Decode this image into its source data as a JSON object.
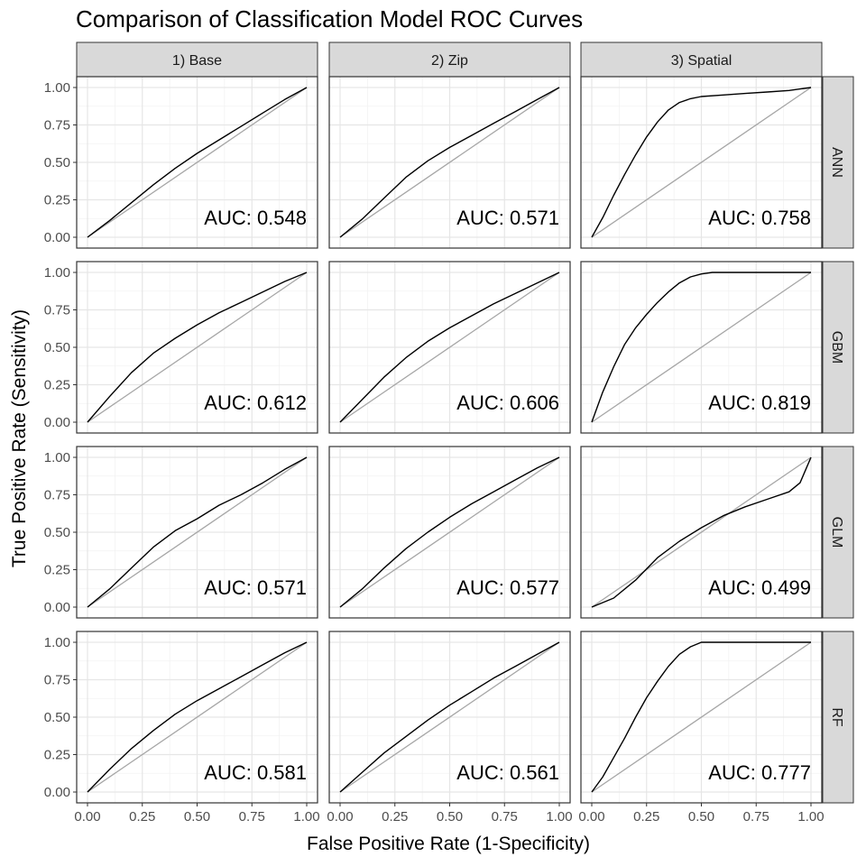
{
  "chart_data": {
    "type": "line",
    "title": "Comparison of Classification Model ROC Curves",
    "xlabel": "False Positive Rate (1-Specificity)",
    "ylabel": "True Positive Rate (Sensitivity)",
    "xlim": [
      0,
      1
    ],
    "ylim": [
      0,
      1
    ],
    "x_ticks": [
      "0.00",
      "0.25",
      "0.50",
      "0.75",
      "1.00"
    ],
    "y_ticks": [
      "0.00",
      "0.25",
      "0.50",
      "0.75",
      "1.00"
    ],
    "grid": true,
    "reference_line": "diagonal",
    "facet_columns": [
      "1) Base",
      "2) Zip",
      "3) Spatial"
    ],
    "facet_rows": [
      "ANN",
      "GBM",
      "GLM",
      "RF"
    ],
    "panels": [
      {
        "column": "1) Base",
        "row": "ANN",
        "auc_label": "AUC: 0.548",
        "x": [
          0,
          0.1,
          0.2,
          0.3,
          0.4,
          0.5,
          0.6,
          0.7,
          0.8,
          0.9,
          1.0
        ],
        "y": [
          0,
          0.11,
          0.23,
          0.35,
          0.46,
          0.56,
          0.65,
          0.74,
          0.83,
          0.92,
          1.0
        ]
      },
      {
        "column": "2) Zip",
        "row": "ANN",
        "auc_label": "AUC: 0.571",
        "x": [
          0,
          0.1,
          0.2,
          0.3,
          0.4,
          0.5,
          0.6,
          0.7,
          0.8,
          0.9,
          1.0
        ],
        "y": [
          0,
          0.12,
          0.26,
          0.4,
          0.51,
          0.6,
          0.68,
          0.76,
          0.84,
          0.92,
          1.0
        ]
      },
      {
        "column": "3) Spatial",
        "row": "ANN",
        "auc_label": "AUC: 0.758",
        "x": [
          0,
          0.05,
          0.1,
          0.15,
          0.2,
          0.25,
          0.3,
          0.35,
          0.4,
          0.45,
          0.5,
          0.6,
          0.7,
          0.8,
          0.9,
          1.0
        ],
        "y": [
          0,
          0.13,
          0.28,
          0.42,
          0.55,
          0.67,
          0.77,
          0.85,
          0.9,
          0.925,
          0.94,
          0.95,
          0.96,
          0.97,
          0.98,
          1.0
        ]
      },
      {
        "column": "1) Base",
        "row": "GBM",
        "auc_label": "AUC: 0.612",
        "x": [
          0,
          0.1,
          0.2,
          0.3,
          0.4,
          0.5,
          0.6,
          0.7,
          0.8,
          0.9,
          1.0
        ],
        "y": [
          0,
          0.17,
          0.33,
          0.46,
          0.56,
          0.65,
          0.73,
          0.8,
          0.87,
          0.94,
          1.0
        ]
      },
      {
        "column": "2) Zip",
        "row": "GBM",
        "auc_label": "AUC: 0.606",
        "x": [
          0,
          0.1,
          0.2,
          0.3,
          0.4,
          0.5,
          0.6,
          0.7,
          0.8,
          0.9,
          1.0
        ],
        "y": [
          0,
          0.15,
          0.3,
          0.43,
          0.54,
          0.63,
          0.71,
          0.79,
          0.86,
          0.93,
          1.0
        ]
      },
      {
        "column": "3) Spatial",
        "row": "GBM",
        "auc_label": "AUC: 0.819",
        "x": [
          0,
          0.05,
          0.1,
          0.15,
          0.2,
          0.25,
          0.3,
          0.35,
          0.4,
          0.45,
          0.5,
          0.55,
          0.6,
          0.8,
          1.0
        ],
        "y": [
          0,
          0.2,
          0.37,
          0.52,
          0.63,
          0.72,
          0.8,
          0.87,
          0.93,
          0.97,
          0.99,
          1.0,
          1.0,
          1.0,
          1.0
        ]
      },
      {
        "column": "1) Base",
        "row": "GLM",
        "auc_label": "AUC: 0.571",
        "x": [
          0,
          0.1,
          0.2,
          0.3,
          0.4,
          0.5,
          0.6,
          0.7,
          0.8,
          0.9,
          1.0
        ],
        "y": [
          0,
          0.12,
          0.26,
          0.4,
          0.51,
          0.59,
          0.68,
          0.75,
          0.83,
          0.92,
          1.0
        ]
      },
      {
        "column": "2) Zip",
        "row": "GLM",
        "auc_label": "AUC: 0.577",
        "x": [
          0,
          0.1,
          0.2,
          0.3,
          0.4,
          0.5,
          0.6,
          0.7,
          0.8,
          0.9,
          1.0
        ],
        "y": [
          0,
          0.12,
          0.26,
          0.39,
          0.5,
          0.6,
          0.69,
          0.77,
          0.85,
          0.93,
          1.0
        ]
      },
      {
        "column": "3) Spatial",
        "row": "GLM",
        "auc_label": "AUC: 0.499",
        "x": [
          0,
          0.1,
          0.2,
          0.3,
          0.4,
          0.5,
          0.6,
          0.7,
          0.8,
          0.9,
          0.95,
          1.0
        ],
        "y": [
          0,
          0.06,
          0.18,
          0.33,
          0.44,
          0.53,
          0.61,
          0.67,
          0.72,
          0.77,
          0.83,
          1.0
        ]
      },
      {
        "column": "1) Base",
        "row": "RF",
        "auc_label": "AUC: 0.581",
        "x": [
          0,
          0.1,
          0.2,
          0.3,
          0.4,
          0.5,
          0.6,
          0.7,
          0.8,
          0.9,
          1.0
        ],
        "y": [
          0,
          0.15,
          0.29,
          0.41,
          0.52,
          0.61,
          0.69,
          0.77,
          0.85,
          0.93,
          1.0
        ]
      },
      {
        "column": "2) Zip",
        "row": "RF",
        "auc_label": "AUC: 0.561",
        "x": [
          0,
          0.1,
          0.2,
          0.3,
          0.4,
          0.5,
          0.6,
          0.7,
          0.8,
          0.9,
          1.0
        ],
        "y": [
          0,
          0.13,
          0.26,
          0.37,
          0.48,
          0.58,
          0.67,
          0.76,
          0.84,
          0.92,
          1.0
        ]
      },
      {
        "column": "3) Spatial",
        "row": "RF",
        "auc_label": "AUC: 0.777",
        "x": [
          0,
          0.05,
          0.1,
          0.15,
          0.2,
          0.25,
          0.3,
          0.35,
          0.4,
          0.45,
          0.5,
          0.55,
          0.6,
          0.8,
          1.0
        ],
        "y": [
          0,
          0.1,
          0.23,
          0.36,
          0.5,
          0.63,
          0.74,
          0.84,
          0.92,
          0.97,
          1.0,
          1.0,
          1.0,
          1.0,
          1.0
        ]
      }
    ]
  },
  "colors": {
    "curve": "#000000",
    "diagonal": "#a6a6a6",
    "strip_fill": "#d9d9d9",
    "grid_major": "#e6e6e6",
    "grid_minor": "#f2f2f2",
    "panel_border": "#333333"
  }
}
